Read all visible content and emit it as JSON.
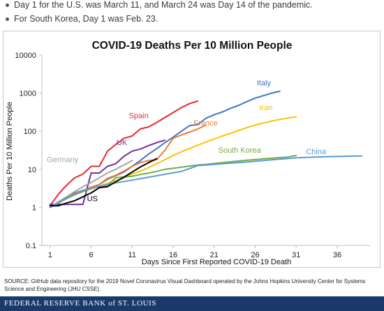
{
  "bullets": [
    "Day 1 for the U.S. was March 11, and March 24 was Day 14 of the pandemic.",
    "For South Korea, Day 1 was Feb. 23."
  ],
  "source_note": "SOURCE: GitHub data repository for the 2019 Novel Coronavirus Visual Dashboard operated by the Johns Hopkins University Center for Systems Science and Engineering (JHU CSSE).",
  "footer_brand": "FEDERAL RESERVE BANK of ST. LOUIS",
  "chart_data": {
    "type": "line",
    "title": "COVID-19 Deaths Per 10 Million People",
    "xlabel": "Days Since First Reported COVID-19 Death",
    "ylabel": "Deaths Per 10 Million People",
    "y_scale": "log",
    "xlim": [
      0,
      40
    ],
    "ylim": [
      0.1,
      10000
    ],
    "x_ticks": [
      1,
      6,
      11,
      16,
      21,
      26,
      31,
      36
    ],
    "y_ticks": [
      0.1,
      1,
      10,
      100,
      1000,
      10000
    ],
    "y_tick_labels": [
      "0.1",
      "1",
      "10",
      "100",
      "1000",
      "10000"
    ],
    "grid": false,
    "legend": "direct-labels",
    "series": [
      {
        "name": "Spain",
        "color": "#e8282f",
        "label_at": [
          10.6,
          220
        ],
        "x": [
          1,
          2,
          3,
          4,
          5,
          6,
          7,
          8,
          9,
          10,
          11,
          12,
          13,
          14,
          15,
          16,
          17,
          18,
          19
        ],
        "y": [
          1.1,
          2.2,
          3.8,
          6,
          7.5,
          12,
          12,
          30,
          45,
          65,
          75,
          115,
          130,
          170,
          230,
          310,
          420,
          530,
          620
        ]
      },
      {
        "name": "Italy",
        "color": "#4472c4",
        "label_at": [
          26.2,
          1600
        ],
        "x": [
          1,
          2,
          3,
          4,
          5,
          6,
          7,
          8,
          9,
          10,
          11,
          12,
          13,
          14,
          15,
          16,
          17,
          18,
          19,
          20,
          21,
          22,
          23,
          24,
          25,
          26,
          27,
          28,
          29
        ],
        "y": [
          1,
          1.3,
          1.7,
          2.4,
          2.8,
          3.3,
          4,
          5.5,
          6.8,
          8.5,
          12,
          17,
          25,
          35,
          50,
          70,
          100,
          140,
          150,
          220,
          270,
          320,
          400,
          480,
          600,
          740,
          860,
          1000,
          1120
        ]
      },
      {
        "name": "France",
        "color": "#ed7d31",
        "label_at": [
          18.5,
          140
        ],
        "x": [
          1,
          2,
          3,
          4,
          5,
          6,
          7,
          8,
          9,
          10,
          11,
          12,
          13,
          14,
          15,
          16,
          17,
          18,
          19,
          20
        ],
        "y": [
          1,
          1.3,
          1.7,
          2.3,
          2.8,
          3.4,
          4,
          5.8,
          7,
          9,
          12,
          15,
          17,
          18,
          32,
          65,
          80,
          95,
          115,
          145
        ]
      },
      {
        "name": "Iran",
        "color": "#ffc000",
        "label_at": [
          26.5,
          360
        ],
        "x": [
          1,
          2,
          3,
          4,
          5,
          6,
          7,
          8,
          9,
          10,
          11,
          12,
          13,
          14,
          15,
          16,
          17,
          18,
          19,
          20,
          21,
          22,
          23,
          24,
          25,
          26,
          27,
          28,
          29,
          30,
          31
        ],
        "y": [
          1,
          1.3,
          1.7,
          2.1,
          2.6,
          3,
          3.6,
          4.3,
          5,
          6,
          7.5,
          9,
          11,
          14,
          18,
          23,
          29,
          35,
          43,
          52,
          62,
          75,
          88,
          105,
          125,
          145,
          165,
          185,
          205,
          222,
          240
        ]
      },
      {
        "name": "UK",
        "color": "#7030a0",
        "label_at": [
          9.1,
          43
        ],
        "x": [
          1,
          2,
          3,
          4,
          5,
          6,
          7,
          8,
          9,
          10,
          11,
          12,
          13,
          14,
          15
        ],
        "y": [
          1.2,
          1.2,
          1.2,
          1.2,
          1.2,
          8,
          8,
          12,
          14,
          22,
          30,
          34,
          42,
          50,
          58
        ]
      },
      {
        "name": "Germany",
        "color": "#a5a5a5",
        "label_at": [
          0.6,
          15.5
        ],
        "x": [
          1,
          2,
          3,
          4,
          5,
          6,
          7,
          8,
          9,
          10,
          11
        ],
        "y": [
          1,
          1.4,
          1.9,
          2.6,
          3.5,
          4.5,
          6,
          8,
          10,
          13,
          17
        ]
      },
      {
        "name": "South Korea",
        "color": "#70ad47",
        "label_at": [
          21.5,
          27
        ],
        "x": [
          1,
          2,
          3,
          4,
          5,
          6,
          7,
          8,
          9,
          10,
          11,
          12,
          13,
          14,
          15,
          16,
          17,
          18,
          19,
          20,
          21,
          22,
          23,
          24,
          25,
          26,
          27,
          28,
          29,
          30,
          31
        ],
        "y": [
          1,
          1.3,
          1.8,
          2.2,
          2.6,
          3.2,
          3.5,
          3.8,
          6,
          6.3,
          6.6,
          7.3,
          8,
          8.8,
          10,
          10.6,
          11.4,
          12.2,
          13,
          13.5,
          14.2,
          15,
          15.8,
          16.5,
          17.3,
          18,
          18.8,
          19.5,
          20.3,
          21,
          23
        ]
      },
      {
        "name": "China",
        "color": "#5b9bd5",
        "label_at": [
          32.2,
          25
        ],
        "x": [
          1,
          3,
          5,
          7,
          9,
          11,
          13,
          15,
          17,
          19,
          21,
          23,
          25,
          27,
          29,
          31,
          33,
          35,
          37,
          39
        ],
        "y": [
          1,
          1.7,
          2.8,
          3.6,
          4.4,
          5.2,
          6.2,
          7.4,
          8.8,
          12.5,
          13.5,
          14.5,
          15.6,
          17,
          18.5,
          20,
          20.8,
          21.5,
          22,
          22.5
        ]
      },
      {
        "name": "US",
        "color": "#000000",
        "label_at": [
          5.5,
          1.45
        ],
        "x": [
          1,
          2,
          3,
          4,
          5,
          6,
          7,
          8,
          9,
          10,
          11,
          12,
          13,
          14
        ],
        "y": [
          1.1,
          1.1,
          1.3,
          1.5,
          1.9,
          2.4,
          3.3,
          3.5,
          4.7,
          6.2,
          8.5,
          11.5,
          15,
          19
        ]
      }
    ]
  }
}
